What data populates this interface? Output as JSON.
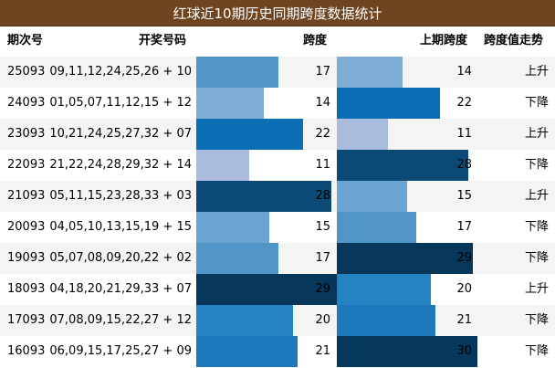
{
  "title": "红球近10期历史同期跨度数据统计",
  "headers": {
    "period": "期次号",
    "numbers": "开奖号码",
    "span": "跨度",
    "prev_span": "上期跨度",
    "trend": "跨度值走势"
  },
  "rows": [
    {
      "period": "25093",
      "numbers": "09,11,12,24,25,26 + 10",
      "span": "17",
      "prev_span": "14",
      "trend": "上升",
      "span_color": "#4f95c6",
      "prev_color": "#7eaed6"
    },
    {
      "period": "24093",
      "numbers": "01,05,07,11,12,15 + 12",
      "span": "14",
      "prev_span": "22",
      "trend": "下降",
      "span_color": "#7eaed6",
      "prev_color": "#0b6eb4"
    },
    {
      "period": "23093",
      "numbers": "10,21,24,25,27,32 + 07",
      "span": "22",
      "prev_span": "11",
      "trend": "上升",
      "span_color": "#0b6eb4",
      "prev_color": "#aabcdd"
    },
    {
      "period": "22093",
      "numbers": "21,22,24,28,29,32 + 14",
      "span": "11",
      "prev_span": "28",
      "trend": "下降",
      "span_color": "#aabcdd",
      "prev_color": "#0b4a74"
    },
    {
      "period": "21093",
      "numbers": "05,11,15,23,28,33 + 03",
      "span": "28",
      "prev_span": "15",
      "trend": "上升",
      "span_color": "#0b4a74",
      "prev_color": "#6aa4d0"
    },
    {
      "period": "20093",
      "numbers": "04,05,10,13,15,19 + 15",
      "span": "15",
      "prev_span": "17",
      "trend": "下降",
      "span_color": "#6aa4d0",
      "prev_color": "#4f95c6"
    },
    {
      "period": "19093",
      "numbers": "05,07,08,09,20,22 + 02",
      "span": "17",
      "prev_span": "29",
      "trend": "下降",
      "span_color": "#4f95c6",
      "prev_color": "#07365b"
    },
    {
      "period": "18093",
      "numbers": "04,18,20,21,29,33 + 07",
      "span": "29",
      "prev_span": "20",
      "trend": "上升",
      "span_color": "#07365b",
      "prev_color": "#2582c0"
    },
    {
      "period": "17093",
      "numbers": "07,08,09,15,22,27 + 12",
      "span": "20",
      "prev_span": "21",
      "trend": "下降",
      "span_color": "#2582c0",
      "prev_color": "#1c78ba"
    },
    {
      "period": "16093",
      "numbers": "06,09,15,17,25,27 + 09",
      "span": "21",
      "prev_span": "30",
      "trend": "下降",
      "span_color": "#1c78ba",
      "prev_color": "#06385e"
    }
  ],
  "colors": {
    "title_bg": "#6f4420",
    "title_fg": "#ffffff",
    "row_alt": "#f4f4f4"
  }
}
